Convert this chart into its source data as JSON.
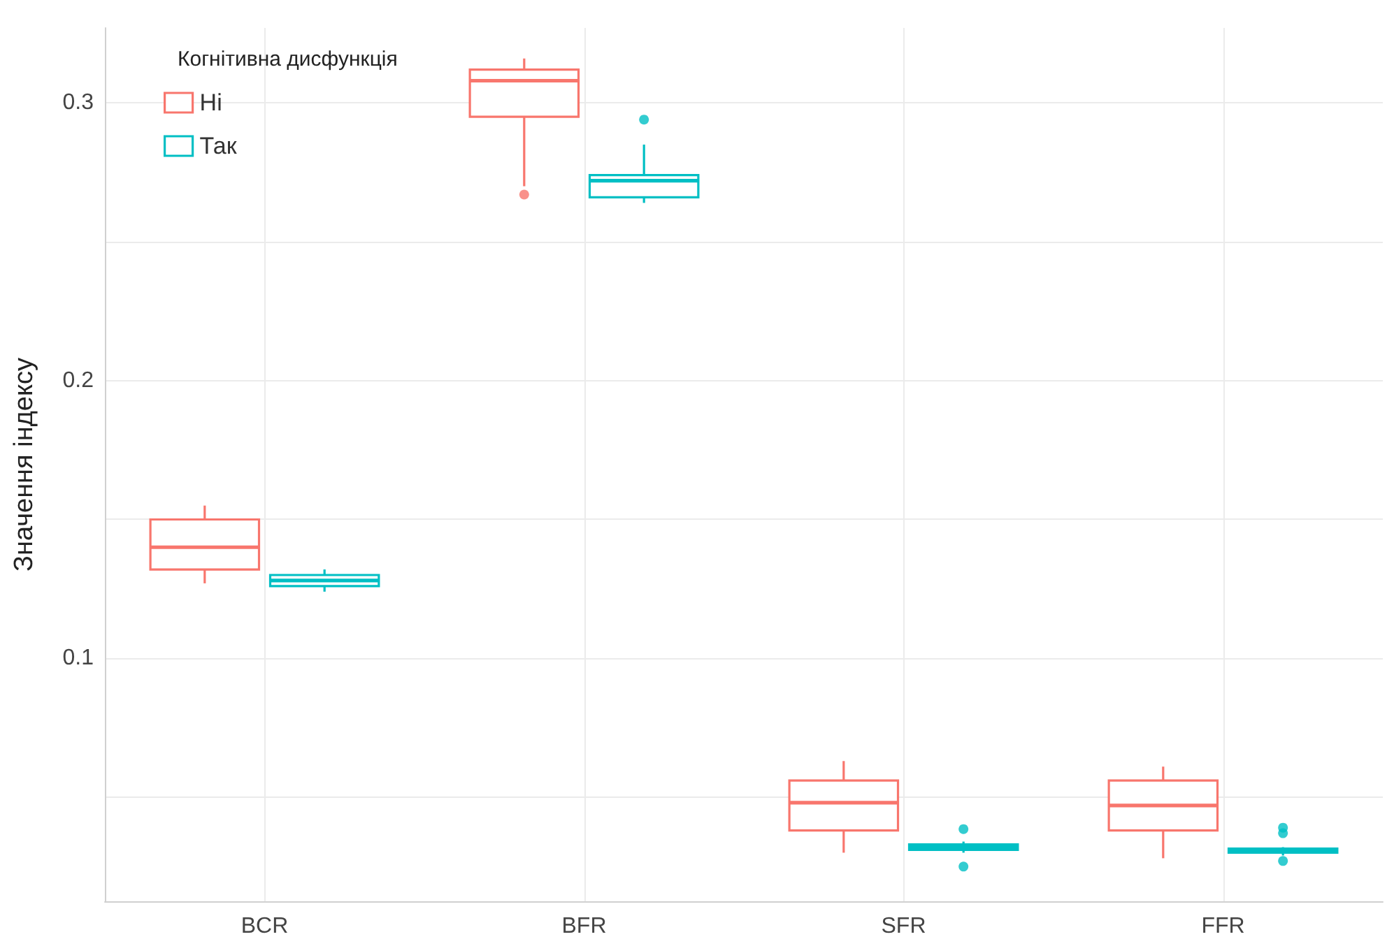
{
  "chart_data": {
    "type": "box",
    "ylabel": "Значення індексу",
    "legend_title": "Когнітивна дисфункція",
    "categories": [
      "BCR",
      "BFR",
      "SFR",
      "FFR"
    ],
    "series": [
      {
        "name": "Ні",
        "color": "#f8766d",
        "boxes": [
          {
            "low": 0.127,
            "q1": 0.132,
            "median": 0.14,
            "q3": 0.15,
            "high": 0.155
          },
          {
            "low": 0.27,
            "q1": 0.295,
            "median": 0.308,
            "q3": 0.312,
            "high": 0.316,
            "outliers": [
              0.267
            ]
          },
          {
            "low": 0.03,
            "q1": 0.038,
            "median": 0.048,
            "q3": 0.056,
            "high": 0.063
          },
          {
            "low": 0.028,
            "q1": 0.038,
            "median": 0.047,
            "q3": 0.056,
            "high": 0.061
          }
        ]
      },
      {
        "name": "Так",
        "color": "#00bfc4",
        "boxes": [
          {
            "low": 0.124,
            "q1": 0.126,
            "median": 0.128,
            "q3": 0.13,
            "high": 0.132
          },
          {
            "low": 0.264,
            "q1": 0.266,
            "median": 0.272,
            "q3": 0.274,
            "high": 0.285,
            "outliers": [
              0.294
            ]
          },
          {
            "low": 0.03,
            "q1": 0.031,
            "median": 0.032,
            "q3": 0.033,
            "high": 0.034,
            "outliers": [
              0.0385,
              0.025
            ]
          },
          {
            "low": 0.029,
            "q1": 0.03,
            "median": 0.031,
            "q3": 0.0315,
            "high": 0.032,
            "outliers": [
              0.039,
              0.037,
              0.027
            ]
          }
        ]
      }
    ],
    "ylim": [
      0.0125,
      0.327
    ],
    "yticks": [
      {
        "value": 0.05,
        "label": null
      },
      0.1,
      {
        "value": 0.15,
        "label": null
      },
      0.2,
      {
        "value": 0.25,
        "label": null
      },
      0.3
    ],
    "grid": true,
    "legend": "top left"
  }
}
